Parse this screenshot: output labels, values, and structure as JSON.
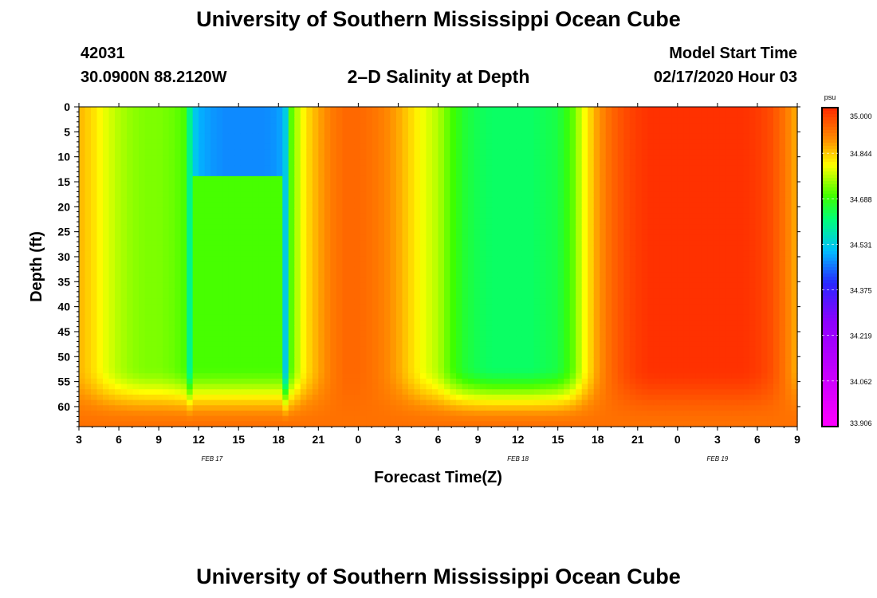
{
  "title_top": "University of Southern Mississippi Ocean Cube",
  "title_bottom": "University of Southern Mississippi Ocean Cube",
  "station": {
    "id": "42031",
    "coords": "30.0900N 88.2120W"
  },
  "plot_title": "2–D Salinity at Depth",
  "model": {
    "label": "Model Start Time",
    "time": "02/17/2020 Hour 03"
  },
  "chart_data": {
    "type": "heatmap",
    "title": "2–D Salinity at Depth",
    "xlabel": "Forecast Time(Z)",
    "ylabel": "Depth (ft)",
    "x_hours_range": [
      3,
      57
    ],
    "y_range": [
      0,
      64
    ],
    "x_tick_labels": [
      "3",
      "6",
      "9",
      "12",
      "15",
      "18",
      "21",
      "0",
      "3",
      "6",
      "9",
      "12",
      "15",
      "18",
      "21",
      "0",
      "3",
      "6",
      "9"
    ],
    "x_tick_hours": [
      3,
      6,
      9,
      12,
      15,
      18,
      21,
      24,
      27,
      30,
      33,
      36,
      39,
      42,
      45,
      48,
      51,
      54,
      57
    ],
    "y_ticks": [
      0,
      5,
      10,
      15,
      20,
      25,
      30,
      35,
      40,
      45,
      50,
      55,
      60
    ],
    "date_labels": [
      {
        "label": "FEB 17",
        "hour": 13
      },
      {
        "label": "FEB 18",
        "hour": 36
      },
      {
        "label": "FEB 19",
        "hour": 51
      }
    ],
    "colorbar": {
      "unit": "psu",
      "min": 33.906,
      "max": 35.0,
      "labels": [
        "35.000",
        "34.844",
        "34.688",
        "34.531",
        "34.375",
        "34.219",
        "34.062",
        "33.906"
      ]
    },
    "surface_profile": {
      "hours": [
        3,
        4,
        5,
        6,
        7,
        8,
        9,
        10,
        11,
        11.5,
        12,
        13,
        14,
        15,
        16,
        17,
        18,
        18.5,
        19,
        20,
        21,
        22,
        23,
        24,
        25,
        26,
        27,
        28,
        29,
        30,
        31,
        32,
        33,
        34,
        35,
        36,
        37,
        38,
        39,
        40,
        41,
        42,
        43,
        44,
        45,
        46,
        47,
        48,
        49,
        50,
        51,
        52,
        53,
        54,
        55,
        56,
        57
      ],
      "salinity": [
        34.86,
        34.83,
        34.79,
        34.76,
        34.74,
        34.73,
        34.73,
        34.72,
        34.7,
        34.55,
        34.5,
        34.48,
        34.47,
        34.47,
        34.47,
        34.47,
        34.48,
        34.52,
        34.72,
        34.82,
        34.87,
        34.91,
        34.93,
        34.93,
        34.92,
        34.9,
        34.87,
        34.83,
        34.79,
        34.76,
        34.7,
        34.66,
        34.64,
        34.63,
        34.63,
        34.63,
        34.63,
        34.64,
        34.65,
        34.7,
        34.8,
        34.88,
        34.93,
        34.96,
        34.98,
        34.99,
        34.99,
        34.99,
        34.99,
        34.99,
        34.99,
        34.99,
        34.99,
        34.98,
        34.96,
        34.92,
        34.86
      ]
    },
    "bottom_salinity": 34.92,
    "bottom_blend_start_ft": 52,
    "fresh_cap_depth_ft": 14
  }
}
